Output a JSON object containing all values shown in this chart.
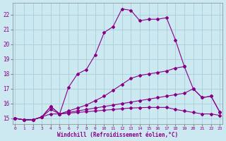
{
  "xlabel": "Windchill (Refroidissement éolien,°C)",
  "background_color": "#cce8f0",
  "grid_color": "#a8ced8",
  "line_color": "#880088",
  "x_ticks": [
    0,
    1,
    2,
    3,
    4,
    5,
    6,
    7,
    8,
    9,
    10,
    11,
    12,
    13,
    14,
    15,
    16,
    17,
    18,
    19,
    20,
    21,
    22,
    23
  ],
  "ylim": [
    14.6,
    22.8
  ],
  "xlim": [
    -0.3,
    23.3
  ],
  "yticks": [
    15,
    16,
    17,
    18,
    19,
    20,
    21,
    22
  ],
  "lines": [
    {
      "x": [
        0,
        1,
        2,
        3,
        4,
        5,
        6,
        7,
        8,
        9,
        10,
        11,
        12,
        13,
        14,
        15,
        16,
        17,
        18,
        19,
        20,
        21,
        22,
        23
      ],
      "y": [
        15.0,
        14.9,
        14.9,
        15.1,
        15.8,
        15.3,
        17.1,
        18.0,
        18.3,
        19.3,
        20.8,
        21.2,
        22.4,
        22.3,
        21.6,
        21.7,
        21.7,
        21.8,
        20.3,
        18.5,
        null,
        null,
        null,
        null
      ]
    },
    {
      "comment": "Line 2: gradual rise to 18.5 at x=19, then 17 at 20, 16.4 at 21, 16.5 at 22, 15.4 at 23",
      "x": [
        0,
        1,
        2,
        3,
        4,
        5,
        6,
        7,
        8,
        9,
        10,
        11,
        12,
        13,
        14,
        15,
        16,
        17,
        18,
        19,
        20,
        21,
        22,
        23
      ],
      "y": [
        15.0,
        14.9,
        14.9,
        15.1,
        15.8,
        15.3,
        15.5,
        15.7,
        15.9,
        16.2,
        16.5,
        16.9,
        17.3,
        17.7,
        17.9,
        18.0,
        18.1,
        18.2,
        18.4,
        18.5,
        17.0,
        16.4,
        16.5,
        15.4
      ]
    },
    {
      "x": [
        0,
        1,
        2,
        3,
        4,
        5,
        6,
        7,
        8,
        9,
        10,
        11,
        12,
        13,
        14,
        15,
        16,
        17,
        18,
        19,
        20,
        21,
        22,
        23
      ],
      "y": [
        15.0,
        14.9,
        14.9,
        15.1,
        15.6,
        15.3,
        15.4,
        15.5,
        15.6,
        15.7,
        15.8,
        15.9,
        16.0,
        16.1,
        16.2,
        16.3,
        16.4,
        16.5,
        16.6,
        16.7,
        17.0,
        16.4,
        16.5,
        15.4
      ]
    },
    {
      "x": [
        0,
        1,
        2,
        3,
        4,
        5,
        6,
        7,
        8,
        9,
        10,
        11,
        12,
        13,
        14,
        15,
        16,
        17,
        18,
        19,
        20,
        21,
        22,
        23
      ],
      "y": [
        15.0,
        14.9,
        14.9,
        15.1,
        15.3,
        15.3,
        15.35,
        15.4,
        15.45,
        15.5,
        15.55,
        15.6,
        15.65,
        15.7,
        15.72,
        15.74,
        15.74,
        15.74,
        15.6,
        15.5,
        15.4,
        15.3,
        15.3,
        15.2
      ]
    }
  ]
}
